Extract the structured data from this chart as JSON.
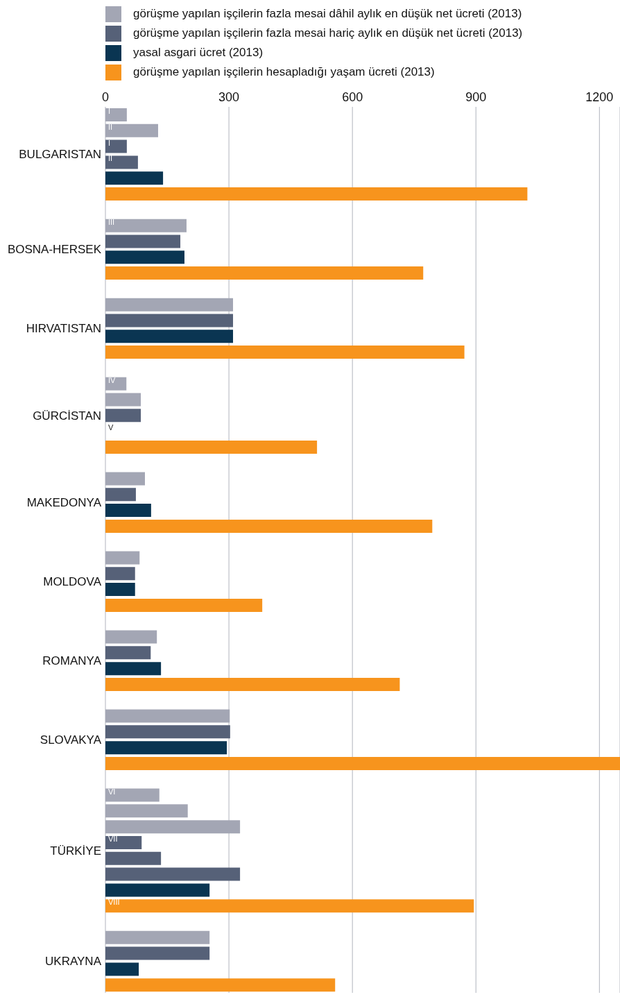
{
  "chart_data": {
    "type": "bar",
    "orientation": "horizontal",
    "categories": [
      "BULGARISTAN",
      "BOSNA-HERSEK",
      "HIRVATISTAN",
      "GÜRCİSTAN",
      "MAKEDONYA",
      "MOLDOVA",
      "ROMANYA",
      "SLOVAKYA",
      "TÜRKİYE",
      "UKRAYNA"
    ],
    "series": [
      {
        "name": "görüşme yapılan işçilerin fazla mesai dâhil aylık en düşük net ücreti (2013)",
        "color": "#a3a6b4",
        "values": [
          52,
          197,
          310,
          51,
          96,
          83,
          125,
          302,
          131,
          253
        ],
        "value_labels": [
          "I",
          "III",
          null,
          "IV",
          null,
          null,
          null,
          null,
          "VI",
          null
        ]
      },
      {
        "color": "#a3a6b4",
        "values": [
          128,
          null,
          null,
          86,
          null,
          null,
          null,
          null,
          200,
          null
        ],
        "value_labels": [
          "II",
          null,
          null,
          null,
          null,
          null,
          null,
          null,
          null,
          null
        ]
      },
      {
        "color": "#a3a6b4",
        "values": [
          null,
          null,
          null,
          null,
          null,
          null,
          null,
          null,
          327,
          null
        ]
      },
      {
        "name": "görüşme yapılan işçilerin fazla mesai hariç aylık en düşük net ücreti (2013)",
        "color": "#566178",
        "values": [
          52,
          182,
          310,
          86,
          74,
          72,
          110,
          303,
          88,
          253
        ],
        "value_labels": [
          "I",
          null,
          null,
          null,
          null,
          null,
          null,
          null,
          "VII",
          null
        ]
      },
      {
        "color": "#566178",
        "values": [
          79,
          null,
          null,
          null,
          null,
          null,
          null,
          null,
          135,
          null
        ],
        "value_labels": [
          "II",
          null,
          null,
          null,
          null,
          null,
          null,
          null,
          null,
          null
        ]
      },
      {
        "color": "#566178",
        "values": [
          null,
          null,
          null,
          null,
          null,
          null,
          null,
          null,
          327,
          null
        ]
      },
      {
        "name": "yasal asgari ücret (2013)",
        "color": "#0a3552",
        "values": [
          140,
          192,
          310,
          null,
          111,
          72,
          135,
          295,
          253,
          81
        ],
        "value_labels": [
          null,
          null,
          null,
          "V",
          null,
          null,
          null,
          null,
          null,
          null
        ]
      },
      {
        "name": "görüşme yapılan işçilerin hesapladığı yaşam ücreti (2013)",
        "color": "#f7941d",
        "values": [
          1025,
          772,
          872,
          514,
          794,
          381,
          715,
          1250,
          895,
          558
        ],
        "value_labels": [
          null,
          null,
          null,
          null,
          null,
          null,
          null,
          null,
          "VIII",
          null
        ]
      }
    ],
    "xlim": [
      0,
      1250
    ],
    "xticks": [
      0,
      300,
      600,
      900,
      1200
    ],
    "grid": "x",
    "legend": "top"
  }
}
